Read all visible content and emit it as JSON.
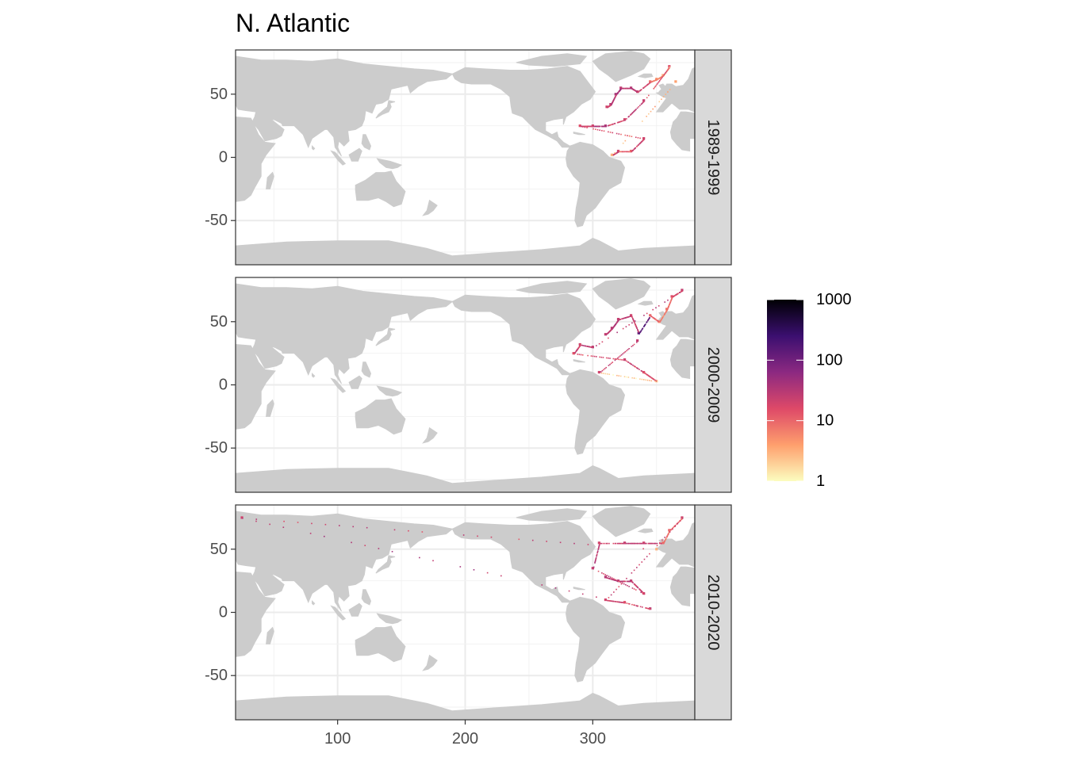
{
  "title": "N. Atlantic",
  "chart_data": {
    "type": "heatmap",
    "title": "N. Atlantic",
    "xlabel": "",
    "ylabel": "",
    "xlim": [
      20,
      380
    ],
    "ylim": [
      -85,
      85
    ],
    "x_ticks": [
      100,
      200,
      300
    ],
    "x_tick_labels": [
      "100",
      "200",
      "300"
    ],
    "y_ticks": [
      50,
      0,
      -50
    ],
    "y_tick_labels": [
      "50",
      "0",
      "-50"
    ],
    "grid": true,
    "land_color": "#cccccc",
    "facets": [
      {
        "label": "1989-1999",
        "observations": [
          {
            "lon": 311,
            "lat": 40,
            "n": 20
          },
          {
            "lon": 314,
            "lat": 42,
            "n": 30
          },
          {
            "lon": 318,
            "lat": 50,
            "n": 40
          },
          {
            "lon": 322,
            "lat": 55,
            "n": 25
          },
          {
            "lon": 330,
            "lat": 55,
            "n": 30
          },
          {
            "lon": 335,
            "lat": 52,
            "n": 20
          },
          {
            "lon": 345,
            "lat": 60,
            "n": 8
          },
          {
            "lon": 350,
            "lat": 62,
            "n": 5
          },
          {
            "lon": 355,
            "lat": 65,
            "n": 3
          },
          {
            "lon": 360,
            "lat": 72,
            "n": 15
          },
          {
            "lon": 340,
            "lat": 45,
            "n": 25
          },
          {
            "lon": 325,
            "lat": 30,
            "n": 20
          },
          {
            "lon": 310,
            "lat": 25,
            "n": 35
          },
          {
            "lon": 300,
            "lat": 25,
            "n": 20
          },
          {
            "lon": 290,
            "lat": 25,
            "n": 15
          },
          {
            "lon": 340,
            "lat": 15,
            "n": 20
          },
          {
            "lon": 330,
            "lat": 5,
            "n": 10
          },
          {
            "lon": 320,
            "lat": 5,
            "n": 20
          },
          {
            "lon": 315,
            "lat": 2,
            "n": 3
          },
          {
            "lon": 365,
            "lat": 60,
            "n": 4
          }
        ]
      },
      {
        "label": "2000-2009",
        "observations": [
          {
            "lon": 310,
            "lat": 40,
            "n": 25
          },
          {
            "lon": 315,
            "lat": 45,
            "n": 30
          },
          {
            "lon": 320,
            "lat": 52,
            "n": 25
          },
          {
            "lon": 330,
            "lat": 55,
            "n": 20
          },
          {
            "lon": 336,
            "lat": 41,
            "n": 150
          },
          {
            "lon": 345,
            "lat": 55,
            "n": 10
          },
          {
            "lon": 352,
            "lat": 50,
            "n": 6
          },
          {
            "lon": 358,
            "lat": 60,
            "n": 8
          },
          {
            "lon": 362,
            "lat": 70,
            "n": 15
          },
          {
            "lon": 370,
            "lat": 75,
            "n": 25
          },
          {
            "lon": 300,
            "lat": 30,
            "n": 25
          },
          {
            "lon": 290,
            "lat": 32,
            "n": 20
          },
          {
            "lon": 285,
            "lat": 25,
            "n": 15
          },
          {
            "lon": 325,
            "lat": 20,
            "n": 20
          },
          {
            "lon": 340,
            "lat": 10,
            "n": 15
          },
          {
            "lon": 350,
            "lat": 3,
            "n": 2
          },
          {
            "lon": 305,
            "lat": 10,
            "n": 20
          },
          {
            "lon": 335,
            "lat": 35,
            "n": 25
          }
        ]
      },
      {
        "label": "2010-2020",
        "observations": [
          {
            "lon": 310,
            "lat": 28,
            "n": 30
          },
          {
            "lon": 320,
            "lat": 25,
            "n": 30
          },
          {
            "lon": 330,
            "lat": 25,
            "n": 25
          },
          {
            "lon": 340,
            "lat": 15,
            "n": 20
          },
          {
            "lon": 300,
            "lat": 35,
            "n": 25
          },
          {
            "lon": 305,
            "lat": 55,
            "n": 20
          },
          {
            "lon": 325,
            "lat": 55,
            "n": 25
          },
          {
            "lon": 340,
            "lat": 55,
            "n": 20
          },
          {
            "lon": 355,
            "lat": 55,
            "n": 8
          },
          {
            "lon": 360,
            "lat": 65,
            "n": 10
          },
          {
            "lon": 370,
            "lat": 75,
            "n": 20
          },
          {
            "lon": 310,
            "lat": 10,
            "n": 20
          },
          {
            "lon": 325,
            "lat": 8,
            "n": 15
          },
          {
            "lon": 345,
            "lat": 3,
            "n": 30
          },
          {
            "lon": 25,
            "lat": 75,
            "n": 20
          },
          {
            "lon": 350,
            "lat": 50,
            "n": 3
          }
        ]
      }
    ],
    "legend": {
      "placement": "right",
      "scale": "log10",
      "range": [
        1,
        1000
      ],
      "breaks": [
        1000,
        100,
        10,
        1
      ],
      "break_labels": [
        "1000",
        "100",
        "10",
        "1"
      ],
      "colors": [
        "#fcfdbf",
        "#fe9f6d",
        "#de4968",
        "#8c2981",
        "#3b0f70",
        "#000004"
      ]
    }
  }
}
